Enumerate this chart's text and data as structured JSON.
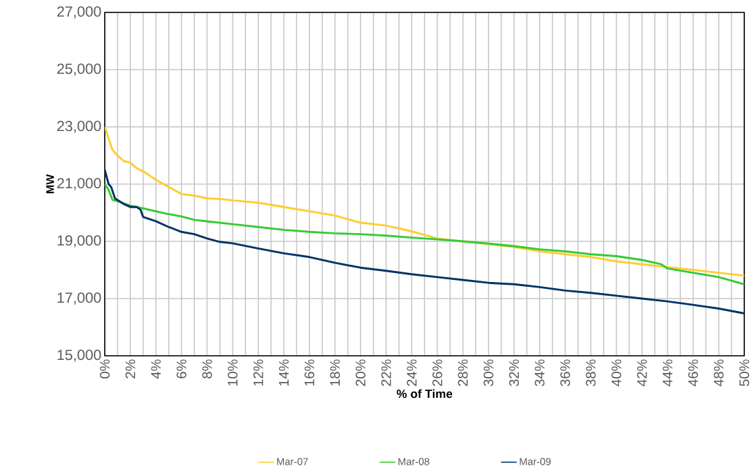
{
  "chart_data": {
    "type": "line",
    "xlabel": "% of Time",
    "ylabel": "MW",
    "xlim": [
      0,
      50
    ],
    "ylim": [
      15000,
      27000
    ],
    "xticks": [
      {
        "value": 0,
        "label": "0%"
      },
      {
        "value": 1,
        "label": null
      },
      {
        "value": 2,
        "label": "2%"
      },
      {
        "value": 3,
        "label": null
      },
      {
        "value": 4,
        "label": "4%"
      },
      {
        "value": 5,
        "label": null
      },
      {
        "value": 6,
        "label": "6%"
      },
      {
        "value": 7,
        "label": null
      },
      {
        "value": 8,
        "label": "8%"
      },
      {
        "value": 9,
        "label": null
      },
      {
        "value": 10,
        "label": "10%"
      },
      {
        "value": 11,
        "label": null
      },
      {
        "value": 12,
        "label": "12%"
      },
      {
        "value": 13,
        "label": null
      },
      {
        "value": 14,
        "label": "14%"
      },
      {
        "value": 15,
        "label": null
      },
      {
        "value": 16,
        "label": "16%"
      },
      {
        "value": 17,
        "label": null
      },
      {
        "value": 18,
        "label": "18%"
      },
      {
        "value": 19,
        "label": null
      },
      {
        "value": 20,
        "label": "20%"
      },
      {
        "value": 21,
        "label": null
      },
      {
        "value": 22,
        "label": "22%"
      },
      {
        "value": 23,
        "label": null
      },
      {
        "value": 24,
        "label": "24%"
      },
      {
        "value": 25,
        "label": null
      },
      {
        "value": 26,
        "label": "26%"
      },
      {
        "value": 27,
        "label": null
      },
      {
        "value": 28,
        "label": "28%"
      },
      {
        "value": 29,
        "label": null
      },
      {
        "value": 30,
        "label": "30%"
      },
      {
        "value": 31,
        "label": null
      },
      {
        "value": 32,
        "label": "32%"
      },
      {
        "value": 33,
        "label": null
      },
      {
        "value": 34,
        "label": "34%"
      },
      {
        "value": 35,
        "label": null
      },
      {
        "value": 36,
        "label": "36%"
      },
      {
        "value": 37,
        "label": null
      },
      {
        "value": 38,
        "label": "38%"
      },
      {
        "value": 39,
        "label": null
      },
      {
        "value": 40,
        "label": "40%"
      },
      {
        "value": 41,
        "label": null
      },
      {
        "value": 42,
        "label": "42%"
      },
      {
        "value": 43,
        "label": null
      },
      {
        "value": 44,
        "label": "44%"
      },
      {
        "value": 45,
        "label": null
      },
      {
        "value": 46,
        "label": "46%"
      },
      {
        "value": 47,
        "label": null
      },
      {
        "value": 48,
        "label": "48%"
      },
      {
        "value": 49,
        "label": null
      },
      {
        "value": 50,
        "label": "50%"
      }
    ],
    "yticks": [
      {
        "value": 15000,
        "label": "15,000"
      },
      {
        "value": 17000,
        "label": "17,000"
      },
      {
        "value": 19000,
        "label": "19,000"
      },
      {
        "value": 21000,
        "label": "21,000"
      },
      {
        "value": 23000,
        "label": "23,000"
      },
      {
        "value": 25000,
        "label": "25,000"
      },
      {
        "value": 27000,
        "label": "27,000"
      }
    ],
    "grid": true,
    "legend": "bottom",
    "marker": "none",
    "line_style": "solid",
    "series": [
      {
        "name": "Mar-07",
        "color": "#ffcc33",
        "x": [
          0,
          0.3,
          0.6,
          1,
          1.5,
          2,
          2.5,
          3,
          4,
          5,
          6,
          7,
          8,
          9,
          10,
          12,
          14,
          16,
          18,
          20,
          22,
          24,
          26,
          28,
          30,
          32,
          34,
          36,
          38,
          40,
          42,
          44,
          46,
          48,
          50
        ],
        "values": [
          23000,
          22600,
          22200,
          22000,
          21800,
          21750,
          21550,
          21450,
          21150,
          20900,
          20650,
          20600,
          20500,
          20480,
          20430,
          20350,
          20200,
          20050,
          19900,
          19650,
          19550,
          19350,
          19100,
          19000,
          18900,
          18800,
          18650,
          18550,
          18450,
          18300,
          18200,
          18100,
          18000,
          17900,
          17800
        ]
      },
      {
        "name": "Mar-08",
        "color": "#33cc33",
        "x": [
          0,
          0.3,
          0.6,
          1,
          2,
          3,
          4,
          5,
          6,
          7,
          8,
          10,
          12,
          14,
          16,
          18,
          20,
          22,
          24,
          26,
          28,
          30,
          32,
          34,
          36,
          38,
          40,
          42,
          43.5,
          44,
          46,
          48,
          50
        ],
        "values": [
          21000,
          20800,
          20450,
          20400,
          20250,
          20150,
          20050,
          19950,
          19870,
          19750,
          19700,
          19600,
          19500,
          19400,
          19330,
          19280,
          19250,
          19200,
          19130,
          19070,
          19000,
          18920,
          18830,
          18720,
          18650,
          18550,
          18480,
          18350,
          18200,
          18050,
          17900,
          17750,
          17500
        ]
      },
      {
        "name": "Mar-09",
        "color": "#003366",
        "x": [
          0,
          0.3,
          0.5,
          0.8,
          1.5,
          2,
          2.5,
          2.8,
          3,
          4,
          5,
          6,
          7,
          8,
          9,
          10,
          12,
          14,
          16,
          18,
          20,
          22,
          24,
          26,
          28,
          30,
          32,
          34,
          36,
          38,
          40,
          42,
          44,
          46,
          48,
          50
        ],
        "values": [
          21500,
          21000,
          20900,
          20500,
          20300,
          20200,
          20200,
          20100,
          19850,
          19700,
          19500,
          19330,
          19250,
          19100,
          18980,
          18930,
          18750,
          18580,
          18450,
          18250,
          18080,
          17970,
          17850,
          17750,
          17650,
          17550,
          17500,
          17400,
          17280,
          17200,
          17100,
          17000,
          16900,
          16780,
          16650,
          16480
        ]
      }
    ]
  }
}
